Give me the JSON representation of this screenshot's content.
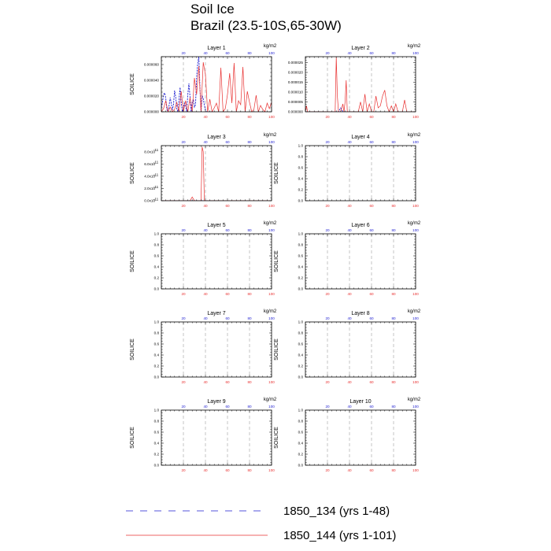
{
  "title": {
    "line1": "Soil Ice",
    "line2": "Brazil (23.5-10S,65-30W)"
  },
  "colors": {
    "series1": "#1f1fd0",
    "series2": "#e83030",
    "grid": "#a0a0a0",
    "axis": "#000000"
  },
  "legend": {
    "items": [
      {
        "label": "1850_134 (yrs 1-48)",
        "style": "dashed",
        "color": "#1f1fd0"
      },
      {
        "label": "1850_144 (yrs 1-101)",
        "style": "solid",
        "color": "#e83030"
      }
    ]
  },
  "chart_data": [
    {
      "type": "line",
      "title": "Layer 1",
      "ylabel": "SOILICE",
      "top_axis_label": "kg/m2",
      "xlim": [
        0,
        100
      ],
      "ylim": [
        0,
        7e-05
      ],
      "xticks": [
        20,
        40,
        60,
        80,
        100
      ],
      "yticks": [
        0,
        2e-05,
        4e-05,
        6e-05
      ],
      "ytick_labels": [
        "0.000000",
        "0.000020",
        "0.000040",
        "0.000060"
      ],
      "grid_x": [
        20,
        40
      ],
      "series": [
        {
          "style": "dashed",
          "color": "#1f1fd0",
          "x": [
            0,
            1,
            2,
            3,
            4,
            5,
            6,
            7,
            8,
            9,
            10,
            11,
            12,
            13,
            14,
            15,
            16,
            17,
            18,
            19,
            20,
            21,
            22,
            23,
            24,
            25,
            26,
            27,
            28,
            29,
            30,
            31,
            32,
            33,
            34,
            35,
            36,
            37,
            38,
            39,
            40,
            41,
            42,
            43,
            44,
            45,
            46,
            47
          ],
          "y": [
            5e-06,
            1.2e-05,
            2.2e-05,
            2.4e-05,
            1.7e-05,
            3e-06,
            0,
            8e-06,
            1.8e-05,
            1.1e-05,
            2e-06,
            9e-06,
            2.7e-05,
            1.9e-05,
            4e-06,
            0,
            1.6e-05,
            3.1e-05,
            1.2e-05,
            0,
            6e-06,
            1.1e-05,
            7e-06,
            0,
            2.2e-05,
            3.6e-05,
            1.9e-05,
            0,
            1.2e-05,
            1.6e-05,
            6e-06,
            9e-06,
            4.4e-05,
            6.2e-05,
            7e-05,
            3.1e-05,
            0,
            2e-05,
            1.7e-05,
            8e-06,
            2e-06,
            0,
            0,
            0,
            0,
            0,
            0,
            0
          ]
        },
        {
          "style": "solid",
          "color": "#e83030",
          "x": [
            0,
            2,
            4,
            6,
            8,
            10,
            12,
            14,
            16,
            18,
            20,
            22,
            24,
            26,
            28,
            30,
            32,
            34,
            36,
            38,
            40,
            42,
            44,
            46,
            48,
            50,
            52,
            54,
            56,
            58,
            60,
            62,
            64,
            66,
            68,
            70,
            72,
            74,
            76,
            78,
            80,
            82,
            84,
            86,
            88,
            90,
            92,
            94,
            96,
            98,
            100
          ],
          "y": [
            0,
            4e-06,
            1.4e-05,
            0,
            6e-06,
            0,
            3e-06,
            1.2e-05,
            0,
            2.6e-05,
            0,
            1.4e-05,
            0,
            1.8e-05,
            0,
            4.3e-05,
            2.2e-05,
            5.8e-05,
            0,
            6.3e-05,
            4.7e-05,
            0,
            1.6e-05,
            0,
            5e-06,
            1.1e-05,
            0,
            5.6e-05,
            0,
            4e-06,
            2.2e-05,
            4.9e-05,
            1.1e-05,
            6.2e-05,
            0,
            1.4e-05,
            9e-06,
            5.7e-05,
            0,
            2.6e-05,
            1.2e-05,
            0,
            3e-06,
            2.1e-05,
            0,
            8e-06,
            3e-06,
            0,
            1.1e-05,
            4e-06,
            1.2e-05
          ]
        }
      ]
    },
    {
      "type": "line",
      "title": "Layer 2",
      "ylabel": "",
      "top_axis_label": "kg/m2",
      "xlim": [
        0,
        100
      ],
      "ylim": [
        0,
        2.8e-05
      ],
      "xticks": [
        20,
        40,
        60,
        80,
        100
      ],
      "yticks": [
        0,
        5e-06,
        1e-05,
        1.5e-05,
        2e-05,
        2.5e-05
      ],
      "ytick_labels": [
        "0.000000",
        "0.000005",
        "0.000010",
        "0.000015",
        "0.000020",
        "0.000025"
      ],
      "grid_x": [
        20,
        40,
        60,
        80
      ],
      "series": [
        {
          "style": "dashed",
          "color": "#1f1fd0",
          "x": [
            0,
            10,
            20,
            28,
            30,
            32,
            34,
            36,
            40,
            47
          ],
          "y": [
            0,
            0,
            0,
            0,
            0,
            2e-06,
            0,
            0,
            0,
            0
          ]
        },
        {
          "style": "solid",
          "color": "#e83030",
          "x": [
            0,
            1,
            2,
            4,
            6,
            8,
            10,
            12,
            14,
            16,
            18,
            20,
            22,
            24,
            26,
            27,
            28,
            29,
            30,
            32,
            33,
            34,
            35,
            36,
            37,
            38,
            39,
            40,
            42,
            44,
            46,
            48,
            50,
            52,
            54,
            56,
            58,
            60,
            62,
            64,
            66,
            68,
            70,
            72,
            74,
            76,
            78,
            80,
            82,
            84,
            86,
            88,
            90,
            92,
            94,
            96,
            98,
            100
          ],
          "y": [
            0,
            3e-06,
            0,
            0,
            0,
            0,
            0,
            0,
            0,
            0,
            0,
            0,
            0,
            0,
            0,
            0,
            2.8e-05,
            8e-06,
            0,
            0,
            2e-06,
            4e-06,
            0,
            5e-06,
            1.6e-05,
            0,
            0,
            0,
            0,
            0,
            0,
            0,
            5e-06,
            0,
            9e-06,
            0,
            4e-06,
            0,
            0,
            8e-06,
            2e-06,
            3e-06,
            8e-06,
            1.1e-05,
            3e-06,
            0,
            3e-06,
            0,
            4e-06,
            0,
            0,
            0,
            6e-06,
            0,
            0,
            0,
            0,
            0
          ]
        }
      ]
    },
    {
      "type": "line",
      "title": "Layer 3",
      "ylabel": "SOILICE",
      "top_axis_label": "kg/m2",
      "xlim": [
        0,
        100
      ],
      "ylim": [
        0,
        9e-11
      ],
      "xticks": [
        20,
        40,
        60,
        80,
        100
      ],
      "yticks": [
        0,
        2e-11,
        4e-11,
        6e-11,
        8e-11
      ],
      "ytick_labels": [
        "0.0x10",
        "2.0x10",
        "4.0x10",
        "6.0x10",
        "8.0x10"
      ],
      "ytick_exp": "-11",
      "grid_x": [
        20,
        40
      ],
      "series": [
        {
          "style": "dashed",
          "color": "#1f1fd0",
          "x": [
            0,
            47
          ],
          "y": [
            0,
            0
          ]
        },
        {
          "style": "solid",
          "color": "#e83030",
          "x": [
            0,
            24,
            26,
            28,
            30,
            32,
            34,
            36,
            37,
            38,
            39,
            40,
            42,
            50,
            100
          ],
          "y": [
            0,
            0,
            0,
            6e-12,
            0,
            0,
            0,
            0,
            8.8e-11,
            8e-11,
            0,
            0,
            0,
            0,
            0
          ]
        }
      ]
    },
    {
      "type": "line",
      "title": "Layer 4",
      "ylabel": "SOILICE",
      "top_axis_label": "kg/m2",
      "xlim": [
        0,
        100
      ],
      "ylim": [
        0,
        1
      ],
      "xticks": [
        20,
        40,
        60,
        80,
        100
      ],
      "yticks": [
        0,
        0.2,
        0.4,
        0.6,
        0.8,
        1.0
      ],
      "ytick_labels": [
        "0.0",
        "0.2",
        "0.4",
        "0.6",
        "0.8",
        "1.0"
      ],
      "grid_x": [
        20,
        40,
        60,
        80
      ],
      "series": []
    },
    {
      "type": "line",
      "title": "Layer 5",
      "ylabel": "SOILICE",
      "top_axis_label": "kg/m2",
      "xlim": [
        0,
        100
      ],
      "ylim": [
        0,
        1
      ],
      "xticks": [
        20,
        40,
        60,
        80,
        100
      ],
      "yticks": [
        0,
        0.2,
        0.4,
        0.6,
        0.8,
        1.0
      ],
      "ytick_labels": [
        "0.0",
        "0.2",
        "0.4",
        "0.6",
        "0.8",
        "1.0"
      ],
      "grid_x": [
        20,
        40,
        60,
        80
      ],
      "series": []
    },
    {
      "type": "line",
      "title": "Layer 6",
      "ylabel": "SOILICE",
      "top_axis_label": "kg/m2",
      "xlim": [
        0,
        100
      ],
      "ylim": [
        0,
        1
      ],
      "xticks": [
        20,
        40,
        60,
        80,
        100
      ],
      "yticks": [
        0,
        0.2,
        0.4,
        0.6,
        0.8,
        1.0
      ],
      "ytick_labels": [
        "0.0",
        "0.2",
        "0.4",
        "0.6",
        "0.8",
        "1.0"
      ],
      "grid_x": [
        20,
        40,
        60,
        80
      ],
      "series": []
    },
    {
      "type": "line",
      "title": "Layer 7",
      "ylabel": "SOILICE",
      "top_axis_label": "kg/m2",
      "xlim": [
        0,
        100
      ],
      "ylim": [
        0,
        1
      ],
      "xticks": [
        20,
        40,
        60,
        80,
        100
      ],
      "yticks": [
        0,
        0.2,
        0.4,
        0.6,
        0.8,
        1.0
      ],
      "ytick_labels": [
        "0.0",
        "0.2",
        "0.4",
        "0.6",
        "0.8",
        "1.0"
      ],
      "grid_x": [
        20,
        40,
        60,
        80
      ],
      "series": []
    },
    {
      "type": "line",
      "title": "Layer 8",
      "ylabel": "SOILICE",
      "top_axis_label": "kg/m2",
      "xlim": [
        0,
        100
      ],
      "ylim": [
        0,
        1
      ],
      "xticks": [
        20,
        40,
        60,
        80,
        100
      ],
      "yticks": [
        0,
        0.2,
        0.4,
        0.6,
        0.8,
        1.0
      ],
      "ytick_labels": [
        "0.0",
        "0.2",
        "0.4",
        "0.6",
        "0.8",
        "1.0"
      ],
      "grid_x": [
        20,
        40,
        60,
        80
      ],
      "series": []
    },
    {
      "type": "line",
      "title": "Layer 9",
      "ylabel": "SOILICE",
      "top_axis_label": "kg/m2",
      "xlim": [
        0,
        100
      ],
      "ylim": [
        0,
        1
      ],
      "xticks": [
        20,
        40,
        60,
        80,
        100
      ],
      "yticks": [
        0,
        0.2,
        0.4,
        0.6,
        0.8,
        1.0
      ],
      "ytick_labels": [
        "0.0",
        "0.2",
        "0.4",
        "0.6",
        "0.8",
        "1.0"
      ],
      "grid_x": [
        20,
        40,
        60,
        80
      ],
      "series": []
    },
    {
      "type": "line",
      "title": "Layer 10",
      "ylabel": "SOILICE",
      "top_axis_label": "kg/m2",
      "xlim": [
        0,
        100
      ],
      "ylim": [
        0,
        1
      ],
      "xticks": [
        20,
        40,
        60,
        80,
        100
      ],
      "yticks": [
        0,
        0.2,
        0.4,
        0.6,
        0.8,
        1.0
      ],
      "ytick_labels": [
        "0.0",
        "0.2",
        "0.4",
        "0.6",
        "0.8",
        "1.0"
      ],
      "grid_x": [
        20,
        40,
        60,
        80
      ],
      "series": []
    }
  ]
}
